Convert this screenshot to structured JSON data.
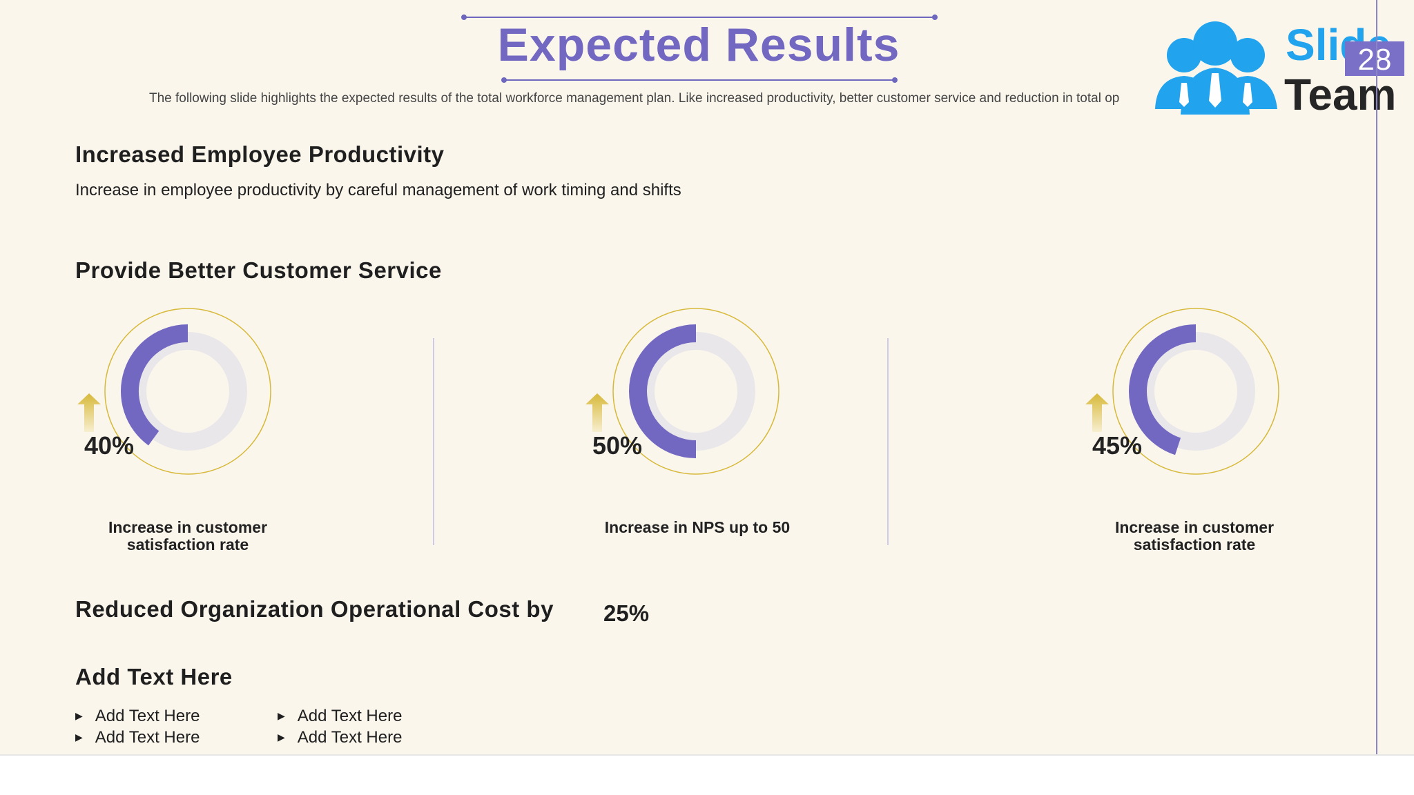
{
  "title": "Expected Results",
  "subtitle": "The following slide highlights the expected results of the total workforce management plan. Like increased productivity, better customer service and reduction in total op",
  "logo": {
    "word1": "Slide",
    "word2": "Team",
    "icon": "people-group-icon"
  },
  "page_number": "28",
  "sections": {
    "productivity": {
      "heading": "Increased Employee Productivity",
      "text": "Increase in employee productivity by careful management of work timing and shifts"
    },
    "customer_service": {
      "heading": "Provide Better Customer Service",
      "metrics": [
        {
          "value": "40%",
          "fraction": 0.4,
          "caption": "Increase in customer satisfaction rate"
        },
        {
          "value": "50%",
          "fraction": 0.5,
          "caption": "Increase in NPS up to 50"
        },
        {
          "value": "45%",
          "fraction": 0.45,
          "caption": "Increase in customer satisfaction rate"
        }
      ]
    },
    "cost": {
      "heading": "Reduced Organization Operational Cost by",
      "value": "25%"
    },
    "add_text": {
      "heading": "Add Text Here",
      "bullets_left": [
        "Add Text Here",
        "Add Text Here"
      ],
      "bullets_right": [
        "Add Text Here",
        "Add Text Here"
      ]
    }
  },
  "colors": {
    "accent": "#7268c2",
    "gold": "#d7b93a",
    "logo_blue": "#21a3ee",
    "track": "#e9e7ea"
  }
}
